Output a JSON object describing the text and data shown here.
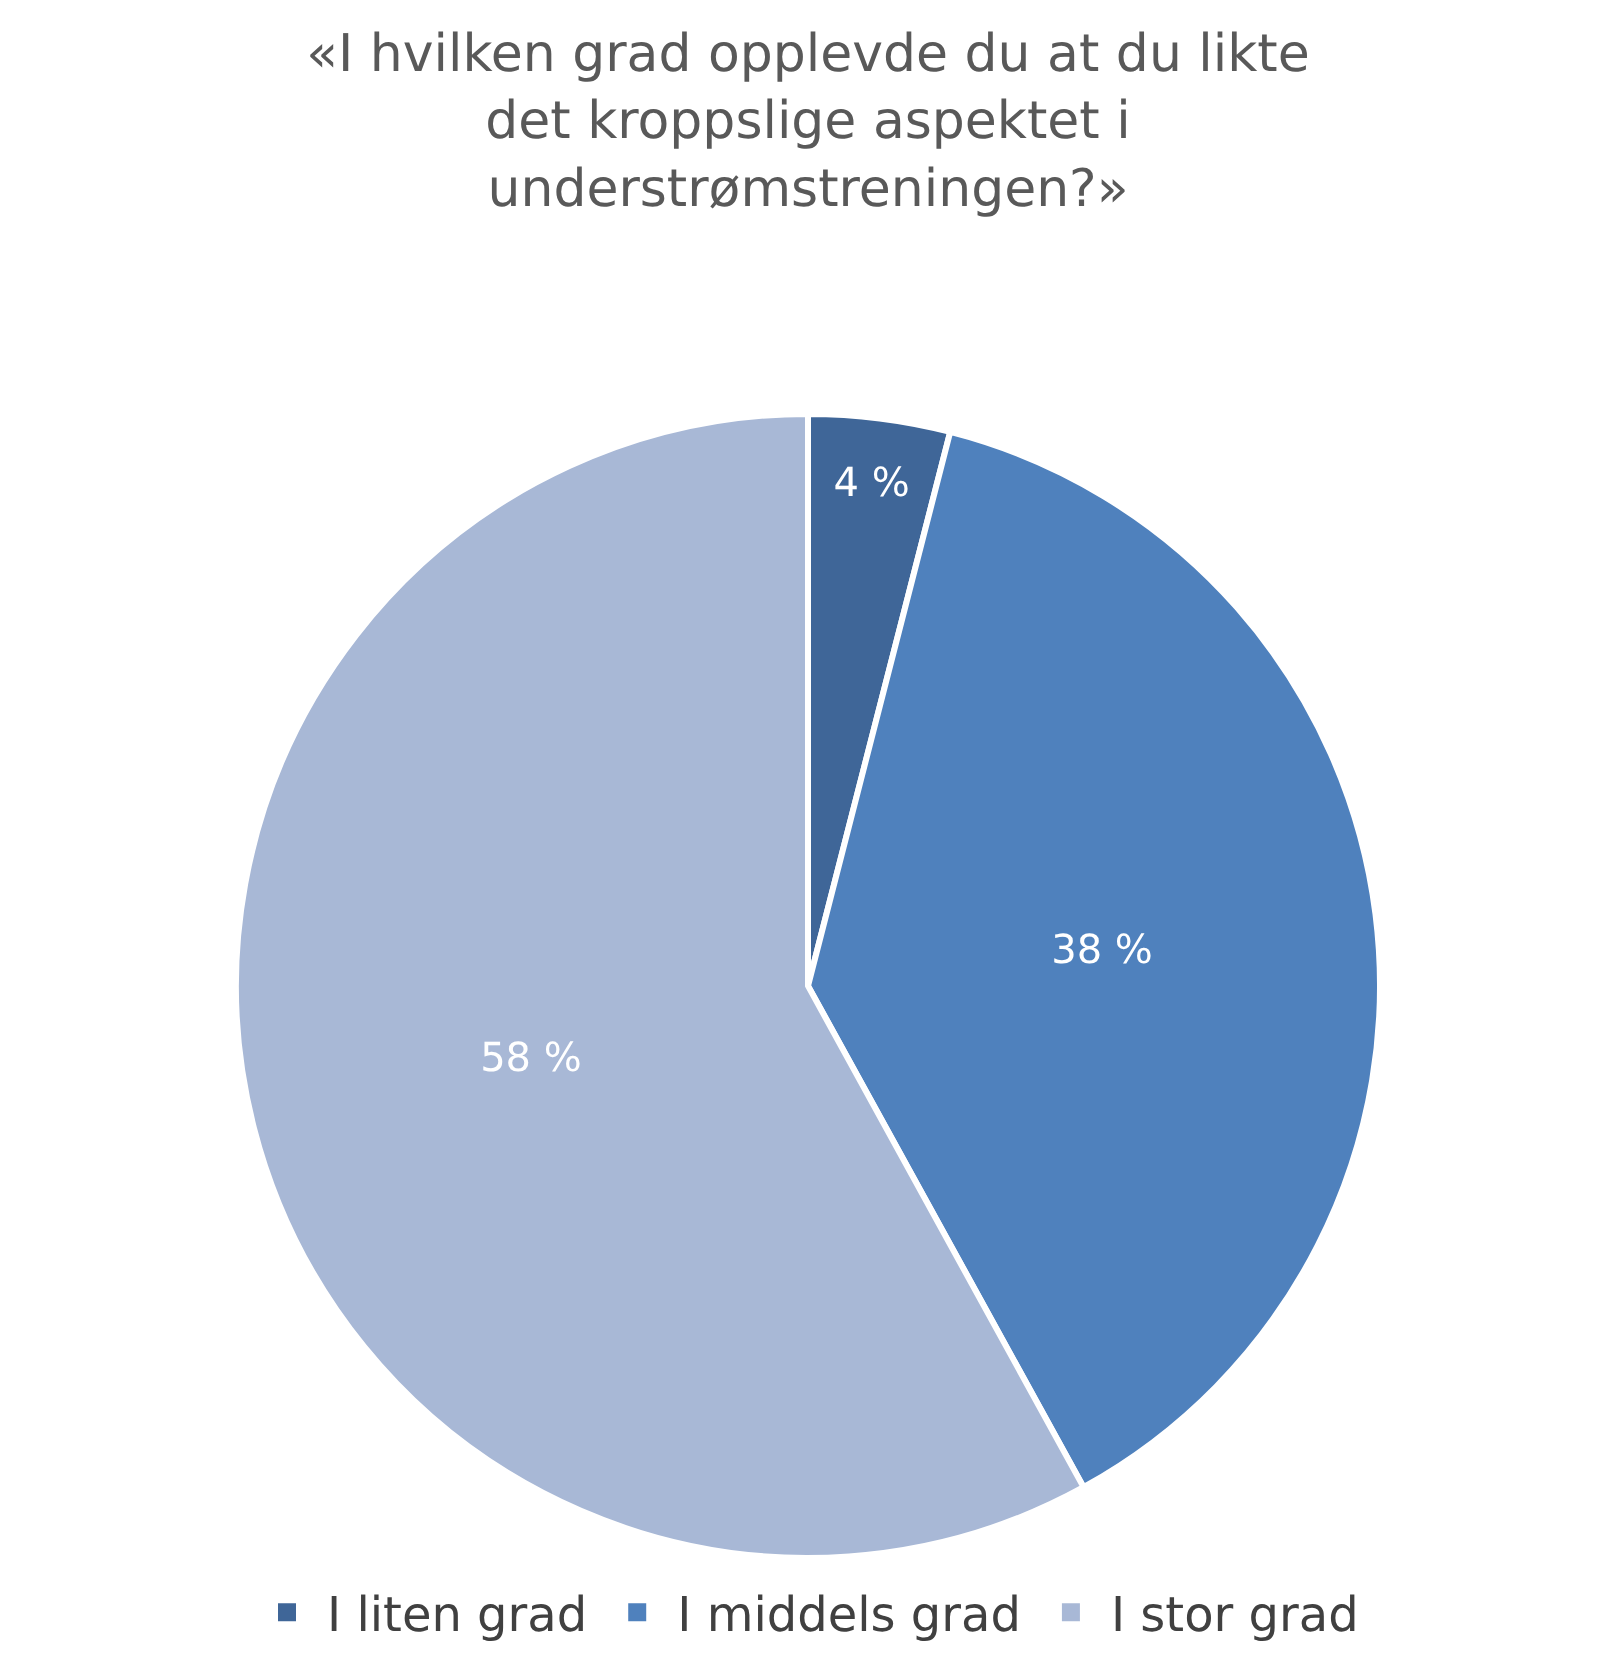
{
  "chart_data": {
    "type": "pie",
    "title": "«I hvilken grad opplevde du at du likte\ndet kroppslige aspektet i\nunderstrømstreningen?»",
    "categories": [
      "I liten grad",
      "I middels grad",
      "I stor grad"
    ],
    "values": [
      4,
      38,
      58
    ],
    "value_labels": [
      "4 %",
      "38 %",
      "58 %"
    ],
    "colors": [
      "#3f6698",
      "#4f81bd",
      "#a8b8d6"
    ],
    "legend": "bottom"
  }
}
